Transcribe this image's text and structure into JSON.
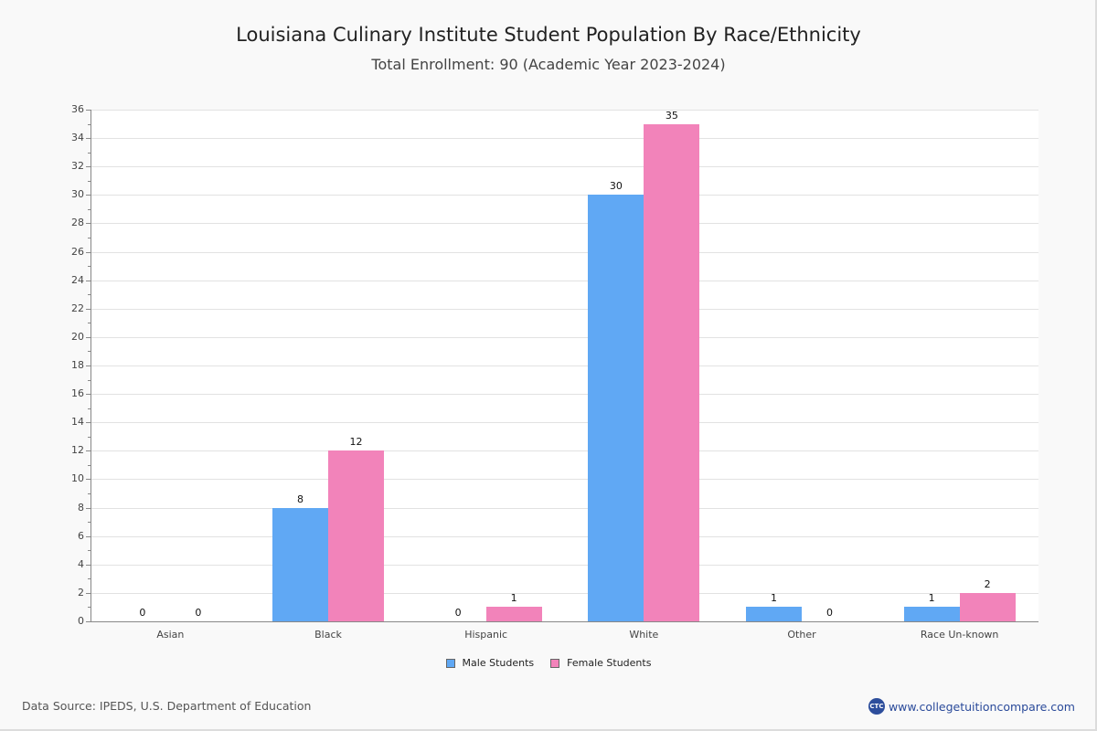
{
  "chart_data": {
    "type": "bar",
    "title": "Louisiana Culinary Institute Student Population By Race/Ethnicity",
    "subtitle": "Total Enrollment: 90 (Academic Year 2023-2024)",
    "categories": [
      "Asian",
      "Black",
      "Hispanic",
      "White",
      "Other",
      "Race Un-known"
    ],
    "series": [
      {
        "name": "Male Students",
        "color": "#60a8f4",
        "values": [
          0,
          8,
          0,
          30,
          1,
          1
        ]
      },
      {
        "name": "Female Students",
        "color": "#f283ba",
        "values": [
          0,
          12,
          1,
          35,
          0,
          2
        ]
      }
    ],
    "xlabel": "",
    "ylabel": "",
    "ylim": [
      0,
      36
    ],
    "yticks": [
      0,
      2,
      4,
      6,
      8,
      10,
      12,
      14,
      16,
      18,
      20,
      22,
      24,
      26,
      28,
      30,
      32,
      34,
      36
    ],
    "grid": true,
    "legend_position": "bottom"
  },
  "header": {
    "title": "Louisiana Culinary Institute Student Population By Race/Ethnicity",
    "subtitle": "Total Enrollment: 90 (Academic Year 2023-2024)"
  },
  "legend": {
    "male_label": "Male Students",
    "female_label": "Female Students"
  },
  "footer": {
    "source": "Data Source: IPEDS, U.S. Department of Education",
    "site": "www.collegetuitioncompare.com",
    "logo_text": "CTC"
  }
}
